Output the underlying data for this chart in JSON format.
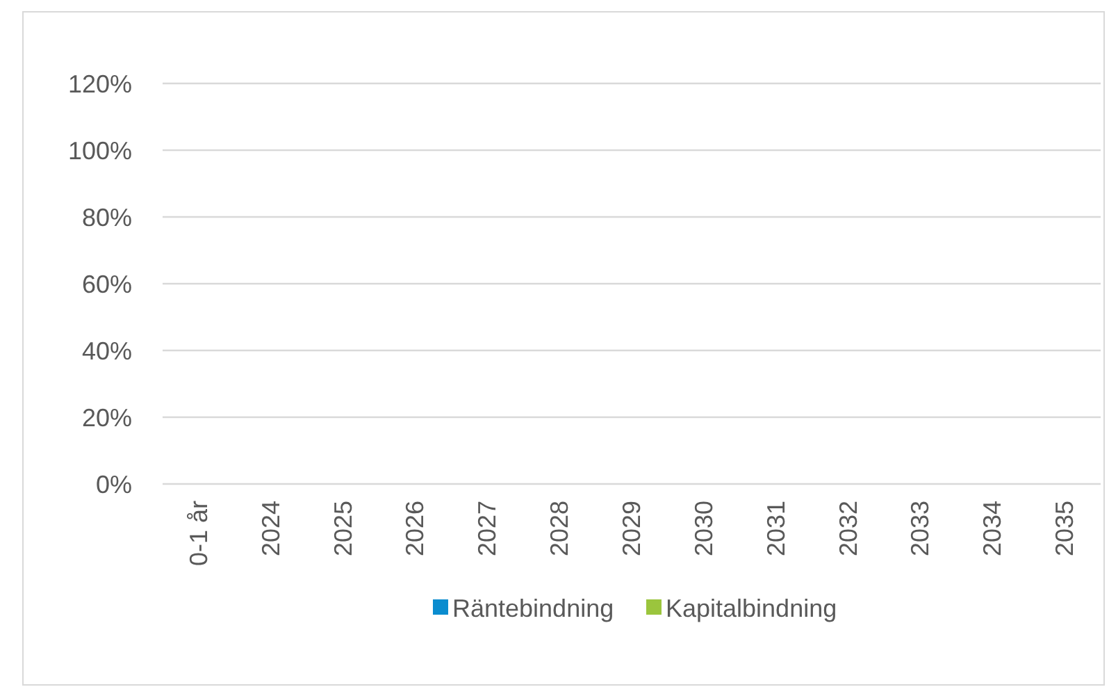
{
  "chart_data": {
    "type": "bar",
    "categories": [
      "0-1 år",
      "2024",
      "2025",
      "2026",
      "2027",
      "2028",
      "2029",
      "2030",
      "2031",
      "2032",
      "2033",
      "2034",
      "2035"
    ],
    "series": [
      {
        "name": "Räntebindning",
        "color": "#0a8ccf",
        "values": [
          0,
          0,
          0,
          0,
          0,
          0,
          0,
          0,
          0,
          0,
          0,
          0,
          0
        ]
      },
      {
        "name": "Kapitalbindning",
        "color": "#9bc53d",
        "values": [
          0,
          0,
          0,
          0,
          0,
          0,
          0,
          0,
          0,
          0,
          0,
          0,
          0
        ]
      }
    ],
    "ylim": [
      0,
      120
    ],
    "yticks": [
      {
        "value": 0,
        "label": "0%"
      },
      {
        "value": 20,
        "label": "20%"
      },
      {
        "value": 40,
        "label": "40%"
      },
      {
        "value": 60,
        "label": "60%"
      },
      {
        "value": 80,
        "label": "80%"
      },
      {
        "value": 100,
        "label": "100%"
      },
      {
        "value": 120,
        "label": "120%"
      }
    ],
    "grid": "y",
    "legend": "bottom"
  }
}
